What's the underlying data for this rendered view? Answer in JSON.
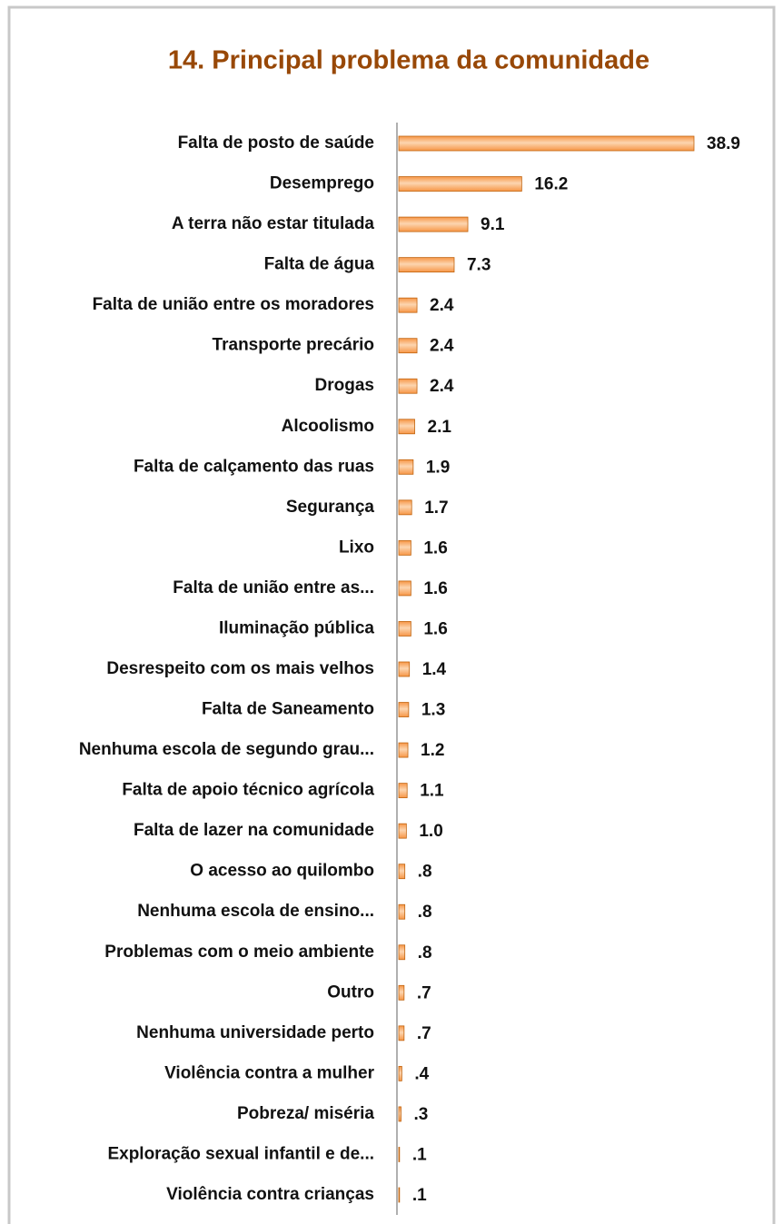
{
  "chart_data": {
    "type": "bar",
    "orientation": "horizontal",
    "title": "14. Principal problema da comunidade",
    "categories": [
      "Falta de posto de saúde",
      "Desemprego",
      "A terra não estar titulada",
      "Falta de água",
      "Falta de união entre os moradores",
      "Transporte precário",
      "Drogas",
      "Alcoolismo",
      "Falta de calçamento das ruas",
      "Segurança",
      "Lixo",
      "Falta de união entre as...",
      "Iluminação pública",
      "Desrespeito com os mais velhos",
      "Falta de Saneamento",
      "Nenhuma escola de segundo grau...",
      "Falta de apoio técnico agrícola",
      "Falta de lazer na comunidade",
      "O acesso ao quilombo",
      "Nenhuma escola de ensino...",
      "Problemas com o meio ambiente",
      "Outro",
      "Nenhuma universidade perto",
      "Violência contra a mulher",
      "Pobreza/ miséria",
      "Exploração sexual infantil e de...",
      "Violência contra crianças"
    ],
    "values": [
      38.9,
      16.2,
      9.1,
      7.3,
      2.4,
      2.4,
      2.4,
      2.1,
      1.9,
      1.7,
      1.6,
      1.6,
      1.6,
      1.4,
      1.3,
      1.2,
      1.1,
      1.0,
      0.8,
      0.8,
      0.8,
      0.7,
      0.7,
      0.4,
      0.3,
      0.1,
      0.1
    ],
    "value_labels": [
      "38.9",
      "16.2",
      "9.1",
      "7.3",
      "2.4",
      "2.4",
      "2.4",
      "2.1",
      "1.9",
      "1.7",
      "1.6",
      "1.6",
      "1.6",
      "1.4",
      "1.3",
      "1.2",
      "1.1",
      "1.0",
      ".8",
      ".8",
      ".8",
      ".7",
      ".7",
      ".4",
      ".3",
      ".1",
      ".1"
    ],
    "color": "#f79646"
  }
}
